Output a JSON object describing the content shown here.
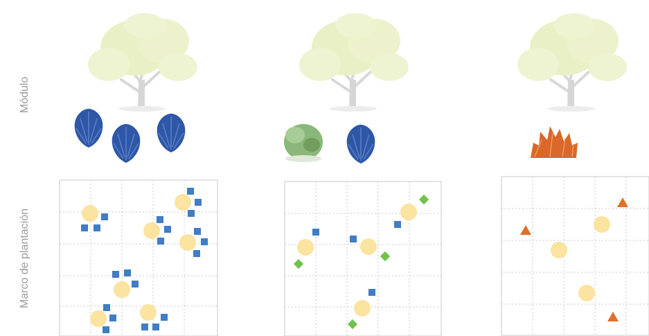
{
  "labels": {
    "modulo": "Módulo",
    "marco": "Marco de plantación"
  },
  "colors": {
    "tree": "#e9efc8",
    "blue_shrub": "#2f57a8",
    "green_shrub": "#7fae6c",
    "orange_shrub": "#d9682a",
    "circle": "#fbe3a0",
    "square": "#3f7dc4",
    "diamond": "#6fc24a",
    "triangle": "#e0702a",
    "grid": "#c8c8c8"
  },
  "modules": [
    {
      "name": "module-1",
      "shrubs": [
        "blue",
        "blue",
        "blue"
      ]
    },
    {
      "name": "module-2",
      "shrubs": [
        "green",
        "blue"
      ]
    },
    {
      "name": "module-3",
      "shrubs": [
        "orange"
      ]
    }
  ],
  "panels": [
    {
      "name": "panel-1",
      "cols": 5,
      "rows": 5
    },
    {
      "name": "panel-2",
      "cols": 5,
      "rows": 5
    },
    {
      "name": "panel-3",
      "cols": 5,
      "rows": 5
    }
  ]
}
